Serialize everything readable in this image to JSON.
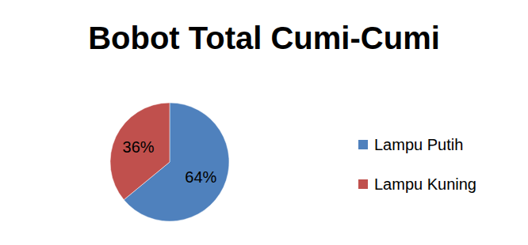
{
  "chart_data": {
    "type": "pie",
    "title": "Bobot Total Cumi-Cumi",
    "categories": [
      "Lampu Putih",
      "Lampu Kuning"
    ],
    "values": [
      64,
      36
    ],
    "value_labels": [
      "64%",
      "36%"
    ],
    "colors": [
      "#4f81bd",
      "#c0504d"
    ],
    "data_labels": true,
    "legend": "right"
  }
}
